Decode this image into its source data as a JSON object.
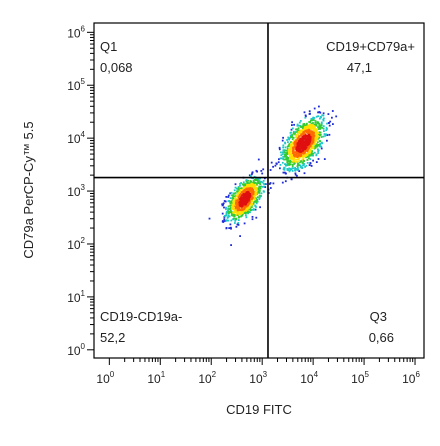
{
  "chart_data": {
    "type": "scatter",
    "style": "density dot plot (pseudocolor)",
    "xlabel": "CD19 FITC",
    "ylabel": "CD79a PerCP-Cy™ 5.5",
    "x_scale": "log",
    "y_scale": "log",
    "xlim": [
      0.5,
      1500000
    ],
    "ylim": [
      0.7,
      1500000
    ],
    "x_ticks": [
      {
        "base": "10",
        "exp": "0",
        "value": 1
      },
      {
        "base": "10",
        "exp": "1",
        "value": 10
      },
      {
        "base": "10",
        "exp": "2",
        "value": 100
      },
      {
        "base": "10",
        "exp": "3",
        "value": 1000
      },
      {
        "base": "10",
        "exp": "4",
        "value": 10000
      },
      {
        "base": "10",
        "exp": "5",
        "value": 100000
      },
      {
        "base": "10",
        "exp": "6",
        "value": 1000000
      }
    ],
    "y_ticks": [
      {
        "base": "10",
        "exp": "0",
        "value": 1
      },
      {
        "base": "10",
        "exp": "1",
        "value": 10
      },
      {
        "base": "10",
        "exp": "2",
        "value": 100
      },
      {
        "base": "10",
        "exp": "3",
        "value": 1000
      },
      {
        "base": "10",
        "exp": "4",
        "value": 10000
      },
      {
        "base": "10",
        "exp": "5",
        "value": 100000
      },
      {
        "base": "10",
        "exp": "6",
        "value": 1000000
      }
    ],
    "gates": {
      "x_threshold": 1300,
      "y_threshold": 1800
    },
    "quadrants": [
      {
        "name": "Q1",
        "value": "0,068",
        "position": "top-left"
      },
      {
        "name": "CD19+CD79a+",
        "value": "47,1",
        "position": "top-right"
      },
      {
        "name": "CD19-CD19a-",
        "value": "52,2",
        "position": "bottom-left"
      },
      {
        "name": "Q3",
        "value": "0,66",
        "position": "bottom-right"
      }
    ],
    "populations": [
      {
        "center_x": 450,
        "center_y": 700,
        "spread_log_x": 0.17,
        "spread_log_y": 0.2,
        "points": 950
      },
      {
        "center_x": 6500,
        "center_y": 8000,
        "spread_log_x": 0.2,
        "spread_log_y": 0.24,
        "points": 1150
      }
    ],
    "grid": false,
    "legend": "none",
    "colors": {
      "axis": "#000000",
      "gate": "#000000",
      "density_low": "#1f2bd6",
      "density_mid_low": "#1fc8c8",
      "density_mid": "#33cc33",
      "density_mid_high": "#ffe000",
      "density_high": "#ff6a00",
      "density_peak": "#e01010"
    }
  }
}
